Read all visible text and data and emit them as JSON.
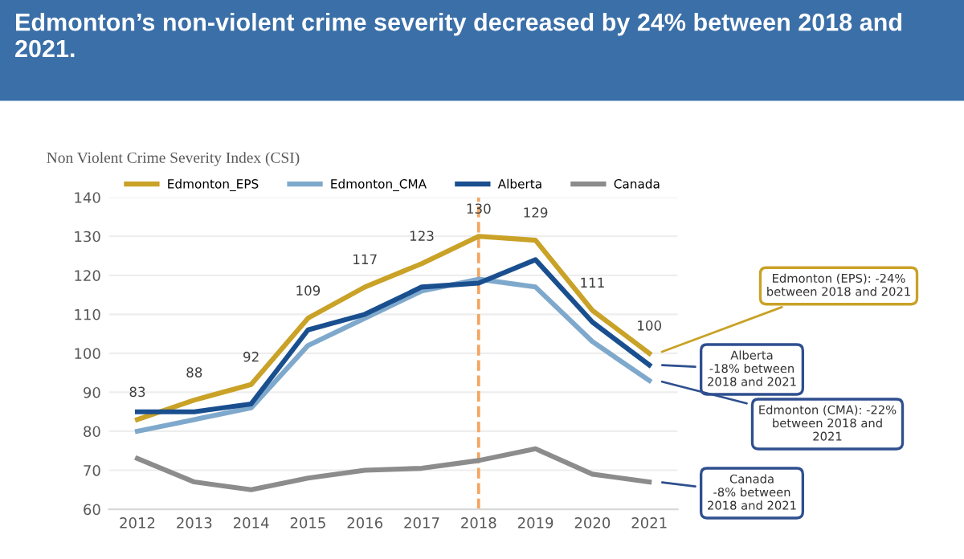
{
  "chart_data": {
    "type": "line",
    "title": "Edmonton’s non-violent crime severity decreased by 24% between 2018 and 2021.",
    "ylabel": "Non Violent Crime Severity Index (CSI)",
    "categories": [
      "2012",
      "2013",
      "2014",
      "2015",
      "2016",
      "2017",
      "2018",
      "2019",
      "2020",
      "2021"
    ],
    "series": [
      {
        "name": "Edmonton_EPS",
        "color": "#c9a227",
        "values": [
          83,
          88,
          92,
          109,
          117,
          123,
          130,
          129,
          111,
          100
        ],
        "value_labels": [
          "83",
          "88",
          "92",
          "109",
          "117",
          "123",
          "130",
          "129",
          "111",
          "100"
        ]
      },
      {
        "name": "Edmonton_CMA",
        "color": "#7fa9cc",
        "values": [
          80,
          83,
          86,
          102,
          109,
          116,
          119,
          117,
          103,
          93
        ]
      },
      {
        "name": "Alberta",
        "color": "#1a4f8f",
        "values": [
          85,
          85,
          87,
          106,
          110,
          117,
          118,
          124,
          108,
          97
        ]
      },
      {
        "name": "Canada",
        "color": "#8c8c8c",
        "values": [
          73,
          67,
          65,
          68,
          70,
          70.5,
          72.5,
          75.5,
          69,
          67
        ]
      }
    ],
    "ylim": [
      60,
      140
    ],
    "yticks": [
      60,
      70,
      80,
      90,
      100,
      110,
      120,
      130,
      140
    ],
    "grid": "y",
    "legend": "top",
    "marker": "none",
    "line_style": "solid",
    "ref_lines": [
      {
        "axis": "x",
        "value": "2018",
        "color": "#f4a460",
        "line_style": "dashed"
      }
    ],
    "annotations": [
      {
        "text": "Edmonton (EPS): -24%\nbetween 2018 and 2021",
        "x": "2021",
        "y": 100
      },
      {
        "text": "Alberta\n-18% between\n2018 and 2021",
        "x": "2021",
        "y": 97
      },
      {
        "text": "Edmonton (CMA): -22%\nbetween 2018 and\n2021",
        "x": "2021",
        "y": 93
      },
      {
        "text": "Canada\n-8% between\n2018 and 2021",
        "x": "2021",
        "y": 67
      }
    ]
  }
}
